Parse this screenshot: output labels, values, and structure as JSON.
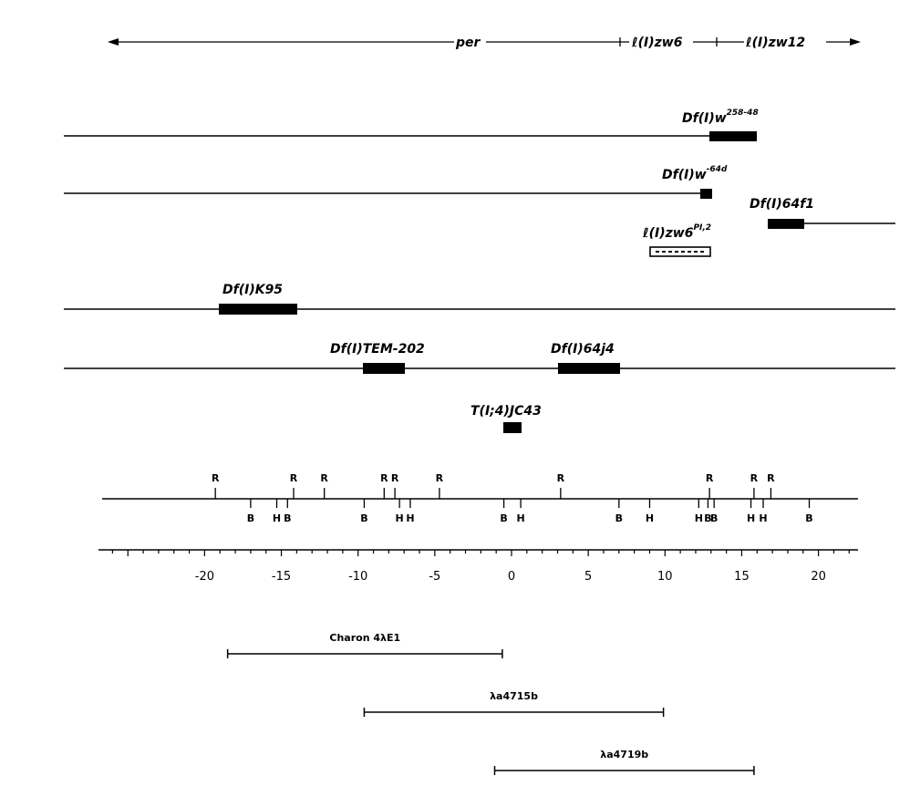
{
  "gene_labels": [
    "per",
    "ℓ(I)zw6",
    "ℓ(I)zw12"
  ],
  "deletions": [
    {
      "name": "Df(I)w",
      "sup": "258-48"
    },
    {
      "name": "Df(I)w",
      "sup": "-64d"
    },
    {
      "name": "Df(I)64f1",
      "sup": ""
    },
    {
      "name": "ℓ(I)zw6",
      "sup": "PI,2"
    },
    {
      "name": "Df(I)K95",
      "sup": ""
    },
    {
      "name": "Df(I)TEM-202",
      "sup": ""
    },
    {
      "name": "Df(I)64j4",
      "sup": ""
    },
    {
      "name": "T(I;4)JC43",
      "sup": ""
    }
  ],
  "restriction_map": {
    "R_sites": [
      -19.3,
      -14.2,
      -12.2,
      -8.3,
      -7.6,
      -4.7,
      3.2,
      12.9,
      15.8,
      16.9
    ],
    "B_sites": [
      -17,
      -14.6,
      -9.6,
      -0.5,
      7,
      12.8,
      13.2,
      19.4
    ],
    "H_sites": [
      -15.3,
      -7.3,
      -6.6,
      0.6,
      9,
      12.2,
      15.6,
      16.4
    ],
    "R_label": "R",
    "B_label": "B",
    "H_label": "H"
  },
  "scale": {
    "tick_labels": [
      "-20",
      "-15",
      "-10",
      "-5",
      "0",
      "5",
      "10",
      "15",
      "20"
    ],
    "tick_values": [
      -20,
      -15,
      -10,
      -5,
      0,
      5,
      10,
      15,
      20
    ]
  },
  "clones": [
    {
      "label": "Charon 4λE1",
      "start": -18.5,
      "end": -0.6
    },
    {
      "label": "λa4715b",
      "start": -9.6,
      "end": 9.9
    },
    {
      "label": "λa4719b",
      "start": -1.1,
      "end": 15.8
    }
  ]
}
